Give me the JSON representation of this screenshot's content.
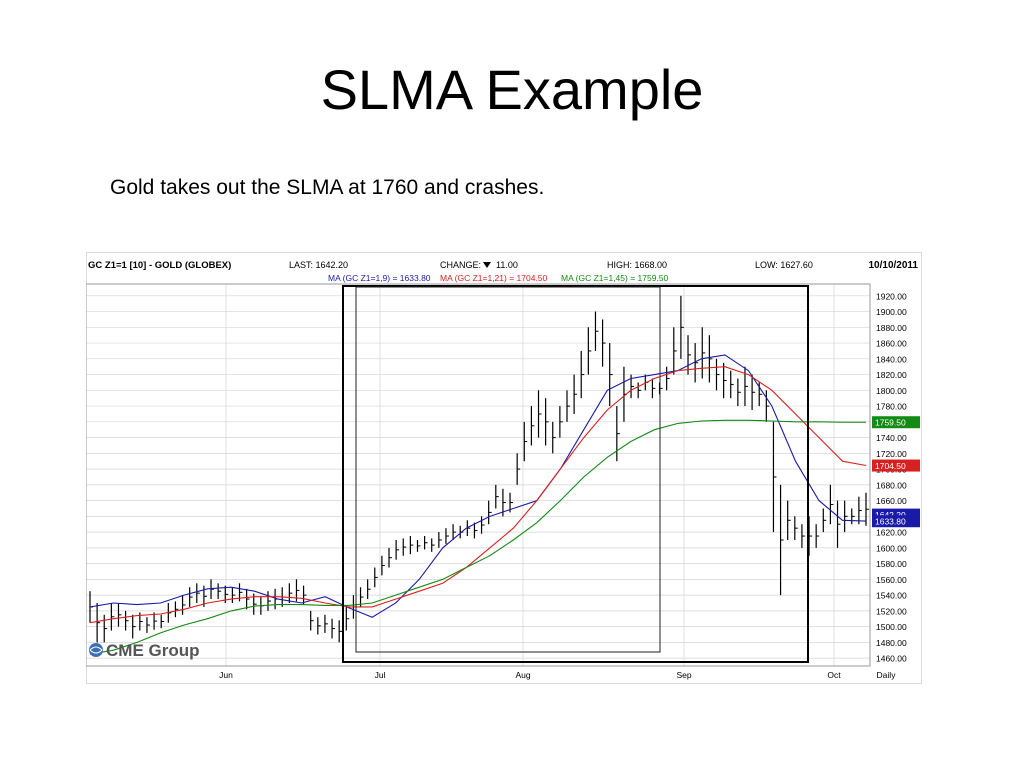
{
  "slide": {
    "title": "SLMA Example",
    "subtitle": "Gold takes out the SLMA at 1760 and crashes."
  },
  "chart_header": {
    "symbol": "GC Z1=1 [10] - GOLD (GLOBEX)",
    "last": "LAST: 1642.20",
    "change_label": "CHANGE:",
    "change_value": "11.00",
    "high": "HIGH: 1668.00",
    "low": "LOW: 1627.60",
    "date": "10/10/2011",
    "ma_fast": "MA (GC Z1=1,9) = 1633.80",
    "ma_mid": "MA (GC Z1=1,21) = 1704.50",
    "ma_slow": "MA (GC Z1=1,45) = 1759.50"
  },
  "logo": {
    "text": "CME Group"
  },
  "colors": {
    "price": "#000000",
    "ma9": "#1a1aa8",
    "ma21": "#d92020",
    "ma45": "#138a13",
    "grid": "#d6d6d6"
  },
  "chart_data": {
    "type": "line",
    "ylim": [
      1450,
      1935
    ],
    "y_ticks": [
      "1920.00",
      "1900.00",
      "1880.00",
      "1860.00",
      "1840.00",
      "1820.00",
      "1800.00",
      "1780.00",
      "1760.00",
      "1740.00",
      "1720.00",
      "1700.00",
      "1680.00",
      "1660.00",
      "1640.00",
      "1620.00",
      "1600.00",
      "1580.00",
      "1560.00",
      "1540.00",
      "1520.00",
      "1500.00",
      "1480.00",
      "1460.00"
    ],
    "x_labels": [
      "Jun",
      "Jul",
      "Aug",
      "Sep",
      "Oct",
      "Daily"
    ],
    "price_tags": [
      {
        "value": 1759.5,
        "label": "1759.50",
        "color": "#138a13"
      },
      {
        "value": 1704.5,
        "label": "1704.50",
        "color": "#d92020"
      },
      {
        "value": 1642.2,
        "label": "1642.20",
        "color": "#1a1aa8"
      },
      {
        "value": 1633.8,
        "label": "1633.80",
        "color": "#1a1aa8"
      }
    ],
    "series": [
      {
        "name": "MA (GC Z1=1,9)",
        "color": "#1a1aa8",
        "values": [
          1525,
          1530,
          1528,
          1530,
          1540,
          1548,
          1550,
          1545,
          1535,
          1530,
          1538,
          1524,
          1512,
          1530,
          1560,
          1600,
          1625,
          1640,
          1650,
          1660,
          1700,
          1750,
          1800,
          1815,
          1820,
          1825,
          1840,
          1845,
          1825,
          1780,
          1710,
          1660,
          1635,
          1634
        ]
      },
      {
        "name": "MA (GC Z1=1,21)",
        "color": "#d92020",
        "values": [
          1505,
          1510,
          1514,
          1516,
          1522,
          1530,
          1535,
          1538,
          1538,
          1536,
          1530,
          1525,
          1525,
          1535,
          1545,
          1555,
          1575,
          1600,
          1625,
          1660,
          1700,
          1740,
          1775,
          1800,
          1815,
          1825,
          1828,
          1830,
          1820,
          1800,
          1770,
          1740,
          1710,
          1704.5
        ]
      },
      {
        "name": "MA (GC Z1=1,45)",
        "color": "#138a13",
        "values": [
          1465,
          1470,
          1480,
          1492,
          1502,
          1510,
          1520,
          1526,
          1528,
          1528,
          1527,
          1527,
          1530,
          1540,
          1550,
          1560,
          1575,
          1590,
          1610,
          1632,
          1660,
          1690,
          1715,
          1735,
          1750,
          1758,
          1761,
          1762,
          1762,
          1761,
          1760,
          1760,
          1759.5,
          1759.5
        ]
      }
    ],
    "price_bars": [
      [
        1545,
        1505
      ],
      [
        1530,
        1480
      ],
      [
        1515,
        1480
      ],
      [
        1530,
        1495
      ],
      [
        1530,
        1500
      ],
      [
        1520,
        1495
      ],
      [
        1515,
        1485
      ],
      [
        1518,
        1495
      ],
      [
        1512,
        1492
      ],
      [
        1518,
        1496
      ],
      [
        1515,
        1498
      ],
      [
        1530,
        1505
      ],
      [
        1532,
        1512
      ],
      [
        1540,
        1515
      ],
      [
        1550,
        1525
      ],
      [
        1555,
        1530
      ],
      [
        1552,
        1525
      ],
      [
        1560,
        1535
      ],
      [
        1555,
        1535
      ],
      [
        1552,
        1530
      ],
      [
        1550,
        1530
      ],
      [
        1555,
        1532
      ],
      [
        1548,
        1522
      ],
      [
        1542,
        1515
      ],
      [
        1538,
        1515
      ],
      [
        1545,
        1520
      ],
      [
        1548,
        1522
      ],
      [
        1550,
        1525
      ],
      [
        1555,
        1530
      ],
      [
        1560,
        1532
      ],
      [
        1552,
        1528
      ],
      [
        1520,
        1495
      ],
      [
        1512,
        1490
      ],
      [
        1515,
        1492
      ],
      [
        1510,
        1485
      ],
      [
        1508,
        1480
      ],
      [
        1525,
        1495
      ],
      [
        1540,
        1510
      ],
      [
        1550,
        1525
      ],
      [
        1560,
        1535
      ],
      [
        1575,
        1550
      ],
      [
        1590,
        1565
      ],
      [
        1600,
        1575
      ],
      [
        1610,
        1585
      ],
      [
        1612,
        1590
      ],
      [
        1615,
        1592
      ],
      [
        1610,
        1595
      ],
      [
        1615,
        1598
      ],
      [
        1612,
        1595
      ],
      [
        1620,
        1600
      ],
      [
        1625,
        1605
      ],
      [
        1630,
        1610
      ],
      [
        1628,
        1612
      ],
      [
        1635,
        1615
      ],
      [
        1632,
        1612
      ],
      [
        1640,
        1618
      ],
      [
        1660,
        1630
      ],
      [
        1680,
        1650
      ],
      [
        1675,
        1640
      ],
      [
        1670,
        1645
      ],
      [
        1720,
        1680
      ],
      [
        1760,
        1710
      ],
      [
        1780,
        1730
      ],
      [
        1800,
        1740
      ],
      [
        1790,
        1730
      ],
      [
        1760,
        1720
      ],
      [
        1780,
        1740
      ],
      [
        1800,
        1760
      ],
      [
        1820,
        1770
      ],
      [
        1850,
        1790
      ],
      [
        1880,
        1820
      ],
      [
        1900,
        1850
      ],
      [
        1890,
        1830
      ],
      [
        1860,
        1780
      ],
      [
        1780,
        1710
      ],
      [
        1830,
        1760
      ],
      [
        1820,
        1790
      ],
      [
        1810,
        1790
      ],
      [
        1820,
        1800
      ],
      [
        1815,
        1790
      ],
      [
        1810,
        1795
      ],
      [
        1830,
        1800
      ],
      [
        1880,
        1820
      ],
      [
        1920,
        1840
      ],
      [
        1870,
        1820
      ],
      [
        1860,
        1810
      ],
      [
        1880,
        1815
      ],
      [
        1870,
        1810
      ],
      [
        1840,
        1800
      ],
      [
        1835,
        1790
      ],
      [
        1825,
        1790
      ],
      [
        1815,
        1780
      ],
      [
        1830,
        1780
      ],
      [
        1820,
        1775
      ],
      [
        1810,
        1780
      ],
      [
        1800,
        1760
      ],
      [
        1760,
        1620
      ],
      [
        1680,
        1540
      ],
      [
        1660,
        1610
      ],
      [
        1640,
        1610
      ],
      [
        1630,
        1600
      ],
      [
        1640,
        1590
      ],
      [
        1630,
        1600
      ],
      [
        1650,
        1620
      ],
      [
        1680,
        1630
      ],
      [
        1660,
        1600
      ],
      [
        1660,
        1620
      ],
      [
        1650,
        1630
      ],
      [
        1665,
        1630
      ],
      [
        1670,
        1628
      ]
    ]
  }
}
